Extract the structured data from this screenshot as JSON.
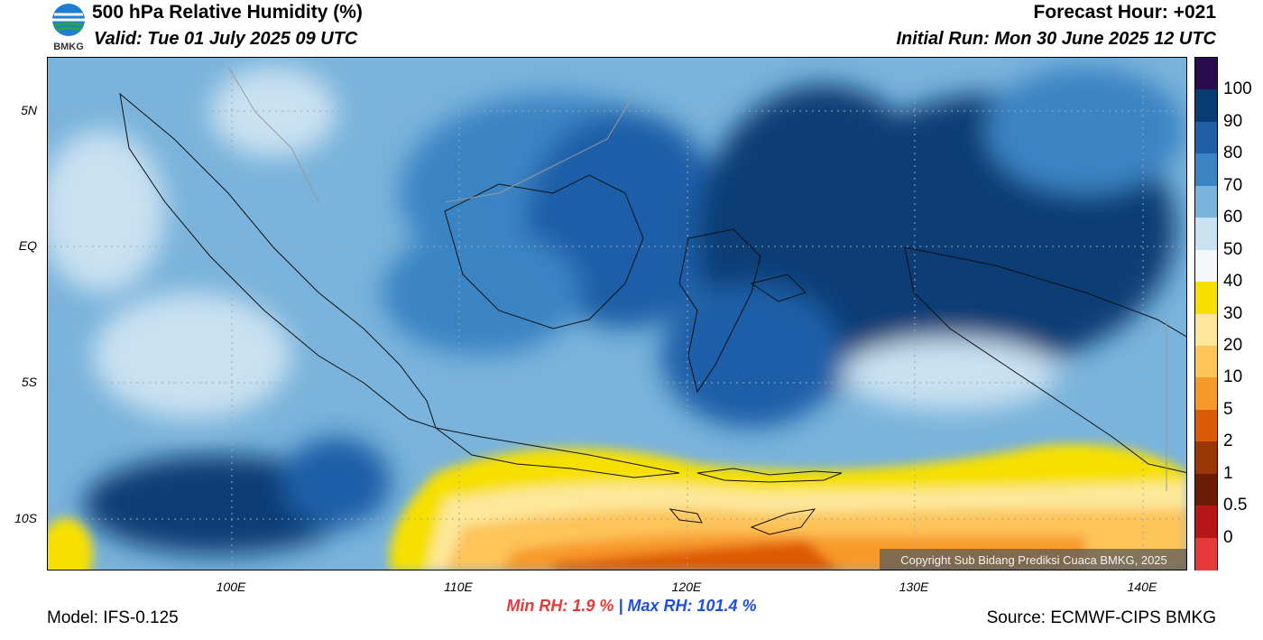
{
  "header": {
    "title": "500 hPa Relative Humidity (%)",
    "valid": "Valid: Tue 01 July 2025 09 UTC",
    "forecast_hour": "Forecast Hour: +021",
    "initial_run": "Initial Run: Mon 30 June 2025 12 UTC",
    "logo_text": "BMKG"
  },
  "axes": {
    "lat_labels": [
      "5N",
      "EQ",
      "5S",
      "10S"
    ],
    "lon_labels": [
      "100E",
      "110E",
      "120E",
      "130E",
      "140E"
    ]
  },
  "colorbar": {
    "labels": [
      "100",
      "90",
      "80",
      "70",
      "60",
      "50",
      "40",
      "30",
      "20",
      "10",
      "5",
      "2",
      "1",
      "0.5",
      "0"
    ],
    "colors": [
      "#2a0b4f",
      "#0a3c74",
      "#1f5fa8",
      "#3b84c4",
      "#7ab3db",
      "#c9e1f1",
      "#f5f8fb",
      "#f7e000",
      "#fde79a",
      "#fdc45a",
      "#f89a2a",
      "#dd5a06",
      "#9b3606",
      "#6a1c06",
      "#b51717",
      "#e8393a"
    ]
  },
  "stats": {
    "min_rh": "Min RH:   1.9 %",
    "separator": "|",
    "max_rh": "Max RH: 101.4 %"
  },
  "footer": {
    "model": "Model: IFS-0.125",
    "source": "Source: ECMWF-CIPS BMKG",
    "copyright": "Copyright Sub Bidang Prediksi Cuaca BMKG, 2025"
  },
  "map": {
    "region": "Indonesia",
    "extent_lon": [
      92,
      142
    ],
    "extent_lat": [
      -12,
      7
    ],
    "colors": {
      "sea_base": "#7ab3db",
      "humid": "#1f5fa8",
      "very_humid": "#0a3c74",
      "dry": "#fdc45a",
      "coast": "#111111"
    }
  }
}
